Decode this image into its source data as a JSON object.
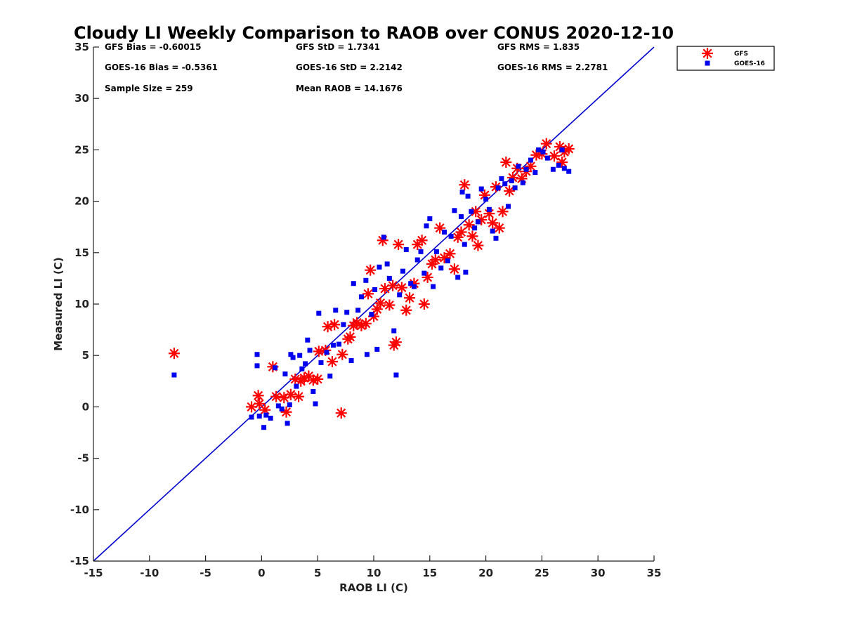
{
  "chart_data": {
    "type": "scatter",
    "title": "Cloudy LI Weekly Comparison to RAOB over CONUS 2020-12-10",
    "xlabel": "RAOB LI (C)",
    "ylabel": "Measured LI (C)",
    "xlim": [
      -15,
      35
    ],
    "ylim": [
      -15,
      35
    ],
    "xticks": [
      "-15",
      "-10",
      "-5",
      "0",
      "5",
      "10",
      "15",
      "20",
      "25",
      "30",
      "35"
    ],
    "yticks": [
      "35",
      "30",
      "25",
      "20",
      "15",
      "10",
      "5",
      "0",
      "-5",
      "-10",
      "-15"
    ],
    "grid": false,
    "legend_position": "top-right, outside plot",
    "reference_line": {
      "from": [
        -15,
        -15
      ],
      "to": [
        35,
        35
      ],
      "color": "#0000cc"
    },
    "stats": [
      "GFS Bias = -0.60015",
      "GFS StD = 1.7341",
      "GFS RMS = 1.835",
      "GOES-16 Bias = -0.5361",
      "GOES-16 StD = 2.2142",
      "GOES-16 RMS = 2.2781",
      "Sample Size = 259",
      "Mean RAOB = 14.1676"
    ],
    "series": [
      {
        "name": "GFS",
        "marker": "asterisk",
        "color": "#ff0000",
        "points": [
          [
            -7.8,
            5.2
          ],
          [
            -0.9,
            0
          ],
          [
            -0.3,
            1.1
          ],
          [
            -0.2,
            0.3
          ],
          [
            0.3,
            -0.3
          ],
          [
            1.0,
            3.9
          ],
          [
            1.3,
            1.0
          ],
          [
            2.0,
            0.9
          ],
          [
            2.2,
            -0.5
          ],
          [
            2.6,
            1.2
          ],
          [
            3.0,
            2.7
          ],
          [
            3.3,
            1.0
          ],
          [
            3.5,
            2.5
          ],
          [
            3.8,
            2.8
          ],
          [
            4.2,
            3.0
          ],
          [
            4.6,
            2.6
          ],
          [
            5.0,
            2.7
          ],
          [
            5.1,
            5.4
          ],
          [
            5.7,
            5.5
          ],
          [
            5.9,
            7.8
          ],
          [
            6.3,
            4.4
          ],
          [
            6.5,
            8.0
          ],
          [
            7.1,
            -0.6
          ],
          [
            7.2,
            5.1
          ],
          [
            7.7,
            6.6
          ],
          [
            7.9,
            6.8
          ],
          [
            8.2,
            7.9
          ],
          [
            8.5,
            8.2
          ],
          [
            8.9,
            7.9
          ],
          [
            9.3,
            8.1
          ],
          [
            9.5,
            11.0
          ],
          [
            9.7,
            13.3
          ],
          [
            10.0,
            8.8
          ],
          [
            10.3,
            9.5
          ],
          [
            10.6,
            10.1
          ],
          [
            10.8,
            16.2
          ],
          [
            11.0,
            11.5
          ],
          [
            11.4,
            9.9
          ],
          [
            11.7,
            11.8
          ],
          [
            11.8,
            6.0
          ],
          [
            12.0,
            6.3
          ],
          [
            12.2,
            15.8
          ],
          [
            12.5,
            11.6
          ],
          [
            12.9,
            9.4
          ],
          [
            13.2,
            10.6
          ],
          [
            13.6,
            12.0
          ],
          [
            13.9,
            15.8
          ],
          [
            14.3,
            16.2
          ],
          [
            14.5,
            10.0
          ],
          [
            14.8,
            12.6
          ],
          [
            15.2,
            13.9
          ],
          [
            15.5,
            14.3
          ],
          [
            15.9,
            17.4
          ],
          [
            16.3,
            14.5
          ],
          [
            16.8,
            14.9
          ],
          [
            17.2,
            13.4
          ],
          [
            17.5,
            16.5
          ],
          [
            17.8,
            17.0
          ],
          [
            18.1,
            21.6
          ],
          [
            18.5,
            17.7
          ],
          [
            18.8,
            16.6
          ],
          [
            19.1,
            19.0
          ],
          [
            19.3,
            15.7
          ],
          [
            19.6,
            18.2
          ],
          [
            19.9,
            20.6
          ],
          [
            20.3,
            18.8
          ],
          [
            20.6,
            17.9
          ],
          [
            20.9,
            21.4
          ],
          [
            21.2,
            17.4
          ],
          [
            21.5,
            19.0
          ],
          [
            21.8,
            23.8
          ],
          [
            22.1,
            21.0
          ],
          [
            22.4,
            22.3
          ],
          [
            22.8,
            23.2
          ],
          [
            23.2,
            22.2
          ],
          [
            23.6,
            22.9
          ],
          [
            24.0,
            23.4
          ],
          [
            24.5,
            24.5
          ],
          [
            25.0,
            24.6
          ],
          [
            25.4,
            25.6
          ],
          [
            26.1,
            24.4
          ],
          [
            26.6,
            25.3
          ],
          [
            27.0,
            24.8
          ],
          [
            27.4,
            25.1
          ],
          [
            26.8,
            23.8
          ]
        ]
      },
      {
        "name": "GOES-16",
        "marker": "square",
        "color": "#0000ee",
        "points": [
          [
            -7.8,
            3.1
          ],
          [
            -0.9,
            -1.0
          ],
          [
            -0.4,
            5.1
          ],
          [
            -0.4,
            4.0
          ],
          [
            -0.2,
            -0.9
          ],
          [
            0.2,
            -2.0
          ],
          [
            0.4,
            -0.8
          ],
          [
            0.8,
            -1.1
          ],
          [
            1.2,
            3.8
          ],
          [
            1.5,
            0.1
          ],
          [
            1.8,
            -0.2
          ],
          [
            2.1,
            3.2
          ],
          [
            2.3,
            -1.6
          ],
          [
            2.5,
            0.2
          ],
          [
            2.6,
            5.1
          ],
          [
            2.8,
            4.8
          ],
          [
            3.1,
            2.0
          ],
          [
            3.4,
            5.0
          ],
          [
            3.6,
            3.7
          ],
          [
            3.9,
            4.2
          ],
          [
            4.1,
            6.5
          ],
          [
            4.3,
            5.5
          ],
          [
            4.6,
            1.5
          ],
          [
            4.8,
            0.3
          ],
          [
            5.1,
            9.1
          ],
          [
            5.3,
            4.3
          ],
          [
            5.8,
            5.3
          ],
          [
            6.1,
            3.0
          ],
          [
            6.4,
            6.0
          ],
          [
            6.6,
            9.4
          ],
          [
            6.9,
            6.1
          ],
          [
            7.3,
            8.0
          ],
          [
            7.6,
            9.2
          ],
          [
            8.0,
            4.5
          ],
          [
            8.2,
            12.0
          ],
          [
            8.6,
            9.4
          ],
          [
            8.9,
            10.7
          ],
          [
            9.3,
            12.3
          ],
          [
            9.4,
            5.1
          ],
          [
            9.8,
            9.0
          ],
          [
            10.1,
            11.4
          ],
          [
            10.3,
            5.6
          ],
          [
            10.5,
            13.6
          ],
          [
            10.9,
            16.5
          ],
          [
            11.2,
            13.9
          ],
          [
            11.4,
            12.5
          ],
          [
            11.8,
            7.4
          ],
          [
            12.0,
            3.1
          ],
          [
            12.3,
            10.9
          ],
          [
            12.6,
            13.2
          ],
          [
            12.9,
            15.3
          ],
          [
            13.3,
            12.0
          ],
          [
            13.6,
            11.7
          ],
          [
            13.9,
            14.3
          ],
          [
            14.2,
            15.1
          ],
          [
            14.5,
            13.0
          ],
          [
            14.7,
            17.6
          ],
          [
            15.0,
            18.3
          ],
          [
            15.3,
            11.7
          ],
          [
            15.6,
            15.1
          ],
          [
            16.0,
            13.5
          ],
          [
            16.3,
            17.0
          ],
          [
            16.6,
            14.2
          ],
          [
            16.9,
            16.6
          ],
          [
            17.2,
            19.1
          ],
          [
            17.5,
            12.6
          ],
          [
            17.8,
            18.5
          ],
          [
            18.1,
            15.8
          ],
          [
            18.2,
            13.1
          ],
          [
            18.4,
            20.5
          ],
          [
            18.7,
            19.0
          ],
          [
            19.0,
            17.4
          ],
          [
            19.3,
            18.0
          ],
          [
            19.6,
            21.2
          ],
          [
            20.0,
            20.2
          ],
          [
            20.3,
            19.2
          ],
          [
            20.6,
            17.1
          ],
          [
            20.9,
            16.4
          ],
          [
            21.1,
            21.3
          ],
          [
            21.4,
            22.2
          ],
          [
            21.7,
            21.7
          ],
          [
            22.0,
            19.5
          ],
          [
            22.3,
            22.0
          ],
          [
            22.6,
            21.3
          ],
          [
            22.9,
            23.4
          ],
          [
            23.3,
            21.8
          ],
          [
            23.6,
            23.1
          ],
          [
            24.0,
            24.0
          ],
          [
            24.4,
            22.8
          ],
          [
            24.7,
            25.0
          ],
          [
            25.1,
            24.8
          ],
          [
            25.5,
            24.2
          ],
          [
            26.0,
            23.1
          ],
          [
            26.5,
            23.5
          ],
          [
            27.0,
            23.2
          ],
          [
            27.4,
            22.9
          ],
          [
            26.8,
            25.0
          ],
          [
            17.9,
            20.9
          ]
        ]
      }
    ]
  }
}
